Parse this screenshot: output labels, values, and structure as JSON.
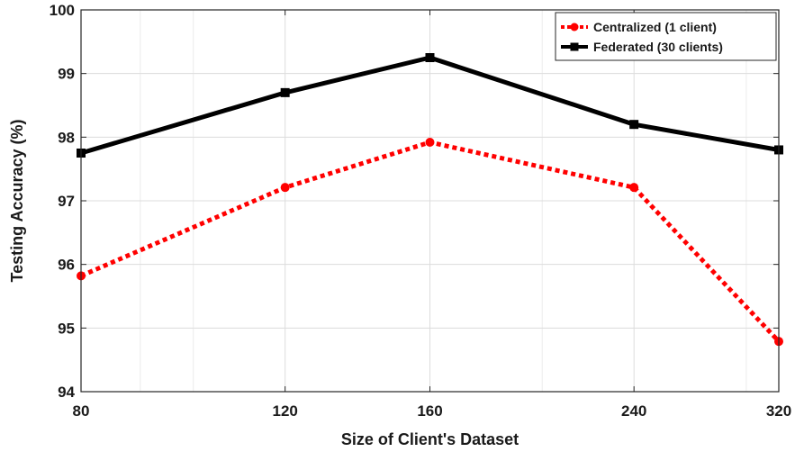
{
  "chart_data": {
    "type": "line",
    "title": "",
    "xlabel": "Size of Client's Dataset",
    "ylabel": "Testing Accuracy (%)",
    "x": [
      80,
      120,
      160,
      240,
      320
    ],
    "x_tick_labels": [
      "80",
      "120",
      "160",
      "240",
      "320"
    ],
    "x_scale": "log",
    "ylim": [
      94,
      100
    ],
    "y_ticks": [
      94,
      95,
      96,
      97,
      98,
      99,
      100
    ],
    "y_tick_labels": [
      "94",
      "95",
      "96",
      "97",
      "98",
      "99",
      "100"
    ],
    "grid": true,
    "legend_position": "top-right",
    "series": [
      {
        "name": "Centralized (1 client)",
        "values": [
          95.82,
          97.21,
          97.92,
          97.21,
          94.79
        ],
        "color": "#ff0000",
        "line_style": "dotted",
        "marker": "circle"
      },
      {
        "name": "Federated (30 clients)",
        "values": [
          97.75,
          98.7,
          99.25,
          98.2,
          97.8
        ],
        "color": "#000000",
        "line_style": "solid",
        "marker": "square"
      }
    ]
  }
}
